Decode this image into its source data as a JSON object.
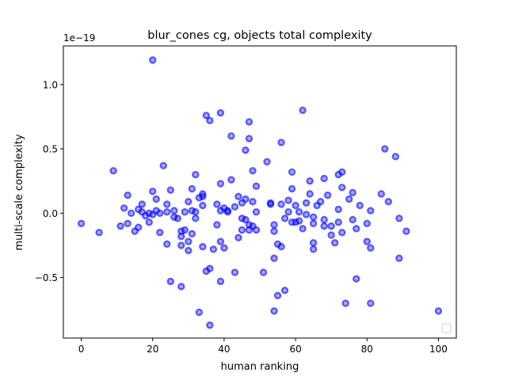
{
  "chart_data": {
    "type": "scatter",
    "title": "blur_cones cg, objects total complexity",
    "xlabel": "human ranking",
    "ylabel": "multi-scale complexity",
    "y_offset_text": "1e−19",
    "y_scale": 1e-19,
    "xlim": [
      -5,
      105
    ],
    "ylim": [
      -0.97,
      1.3
    ],
    "xticks": [
      0,
      20,
      40,
      60,
      80,
      100
    ],
    "xtick_labels": [
      "0",
      "20",
      "40",
      "60",
      "80",
      "100"
    ],
    "yticks": [
      -0.5,
      0.0,
      0.5,
      1.0
    ],
    "ytick_labels": [
      "−0.5",
      "0.0",
      "0.5",
      "1.0"
    ],
    "grid": false,
    "legend": "lower-right (empty)",
    "point_color": "#0000ff",
    "series": [
      {
        "points": [
          [
            0,
            -0.08
          ],
          [
            5,
            -0.15
          ],
          [
            9,
            0.33
          ],
          [
            11,
            -0.1
          ],
          [
            12,
            0.04
          ],
          [
            13,
            0.14
          ],
          [
            13,
            -0.08
          ],
          [
            14,
            0.0
          ],
          [
            15,
            -0.14
          ],
          [
            16,
            0.03
          ],
          [
            16,
            -0.11
          ],
          [
            17,
            0.07
          ],
          [
            17,
            0.01
          ],
          [
            18,
            -0.02
          ],
          [
            19,
            0.0
          ],
          [
            19,
            -0.07
          ],
          [
            20,
            1.19
          ],
          [
            20,
            0.17
          ],
          [
            20,
            -0.01
          ],
          [
            21,
            0.11
          ],
          [
            21,
            0.02
          ],
          [
            22,
            -0.15
          ],
          [
            22,
            0.0
          ],
          [
            23,
            0.37
          ],
          [
            24,
            0.07
          ],
          [
            24,
            0.01
          ],
          [
            24,
            -0.24
          ],
          [
            25,
            0.18
          ],
          [
            25,
            -0.53
          ],
          [
            26,
            0.02
          ],
          [
            26,
            -0.03
          ],
          [
            27,
            -0.04
          ],
          [
            28,
            -0.14
          ],
          [
            28,
            -0.18
          ],
          [
            28,
            -0.25
          ],
          [
            28,
            -0.57
          ],
          [
            29,
            0.01
          ],
          [
            29,
            -0.13
          ],
          [
            30,
            0.09
          ],
          [
            30,
            -0.29
          ],
          [
            30,
            -0.22
          ],
          [
            31,
            0.19
          ],
          [
            31,
            0.02
          ],
          [
            31,
            -0.16
          ],
          [
            32,
            0.3
          ],
          [
            32,
            0.01
          ],
          [
            32,
            -0.04
          ],
          [
            33,
            0.12
          ],
          [
            33,
            -0.77
          ],
          [
            34,
            0.15
          ],
          [
            34,
            0.13
          ],
          [
            34,
            0.06
          ],
          [
            34,
            -0.26
          ],
          [
            35,
            0.76
          ],
          [
            35,
            -0.45
          ],
          [
            36,
            0.72
          ],
          [
            36,
            -0.43
          ],
          [
            36,
            -0.87
          ],
          [
            37,
            -0.28
          ],
          [
            38,
            0.07
          ],
          [
            38,
            -0.09
          ],
          [
            39,
            0.78
          ],
          [
            39,
            0.23
          ],
          [
            39,
            0.02
          ],
          [
            39,
            -0.22
          ],
          [
            39,
            -0.53
          ],
          [
            40,
            0.04
          ],
          [
            40,
            -0.27
          ],
          [
            41,
            0.02
          ],
          [
            41,
            0.01
          ],
          [
            42,
            0.6
          ],
          [
            42,
            0.26
          ],
          [
            43,
            0.05
          ],
          [
            43,
            -0.46
          ],
          [
            44,
            0.13
          ],
          [
            44,
            -0.19
          ],
          [
            45,
            0.08
          ],
          [
            45,
            -0.04
          ],
          [
            45,
            -0.13
          ],
          [
            46,
            0.49
          ],
          [
            46,
            0.11
          ],
          [
            46,
            -0.05
          ],
          [
            47,
            0.71
          ],
          [
            47,
            0.58
          ],
          [
            47,
            -0.09
          ],
          [
            47,
            -0.13
          ],
          [
            48,
            0.33
          ],
          [
            48,
            0.09
          ],
          [
            48,
            -0.1
          ],
          [
            49,
            0.21
          ],
          [
            49,
            0.01
          ],
          [
            49,
            -0.13
          ],
          [
            51,
            -0.46
          ],
          [
            52,
            0.4
          ],
          [
            53,
            0.08
          ],
          [
            53,
            0.07
          ],
          [
            54,
            -0.09
          ],
          [
            54,
            -0.14
          ],
          [
            54,
            -0.35
          ],
          [
            54,
            -0.76
          ],
          [
            55,
            -0.24
          ],
          [
            55,
            -0.64
          ],
          [
            56,
            0.55
          ],
          [
            56,
            0.07
          ],
          [
            56,
            -0.26
          ],
          [
            57,
            -0.04
          ],
          [
            57,
            -0.6
          ],
          [
            58,
            0.1
          ],
          [
            58,
            0.01
          ],
          [
            59,
            0.32
          ],
          [
            59,
            0.19
          ],
          [
            59,
            -0.07
          ],
          [
            60,
            0.06
          ],
          [
            60,
            -0.07
          ],
          [
            61,
            0.01
          ],
          [
            61,
            -0.06
          ],
          [
            62,
            0.8
          ],
          [
            62,
            -0.12
          ],
          [
            63,
            0.08
          ],
          [
            63,
            -0.01
          ],
          [
            64,
            0.25
          ],
          [
            64,
            0.15
          ],
          [
            65,
            -0.03
          ],
          [
            65,
            -0.08
          ],
          [
            65,
            -0.23
          ],
          [
            65,
            -0.28
          ],
          [
            66,
            0.06
          ],
          [
            67,
            0.09
          ],
          [
            68,
            0.27
          ],
          [
            68,
            -0.05
          ],
          [
            68,
            -0.1
          ],
          [
            69,
            0.14
          ],
          [
            70,
            -0.1
          ],
          [
            70,
            -0.17
          ],
          [
            71,
            -0.23
          ],
          [
            72,
            0.3
          ],
          [
            72,
            0.03
          ],
          [
            72,
            -0.07
          ],
          [
            73,
            0.32
          ],
          [
            73,
            0.2
          ],
          [
            73,
            -0.15
          ],
          [
            74,
            -0.7
          ],
          [
            75,
            0.11
          ],
          [
            76,
            0.16
          ],
          [
            76,
            -0.05
          ],
          [
            77,
            -0.51
          ],
          [
            77,
            -0.12
          ],
          [
            78,
            0.06
          ],
          [
            80,
            -0.22
          ],
          [
            80,
            -0.08
          ],
          [
            81,
            0.02
          ],
          [
            81,
            -0.27
          ],
          [
            81,
            -0.7
          ],
          [
            84,
            0.15
          ],
          [
            85,
            0.5
          ],
          [
            86,
            0.09
          ],
          [
            88,
            0.44
          ],
          [
            89,
            -0.04
          ],
          [
            89,
            -0.35
          ],
          [
            91,
            -0.14
          ],
          [
            100,
            -0.76
          ]
        ]
      }
    ]
  }
}
